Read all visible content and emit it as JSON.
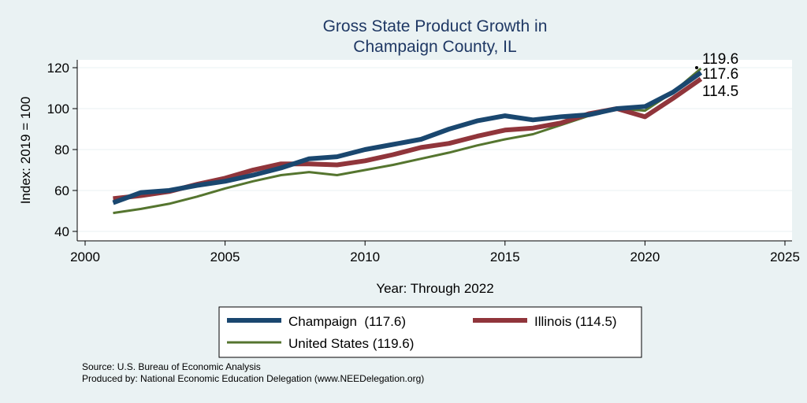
{
  "chart_data": {
    "type": "line",
    "title": [
      "Gross State Product Growth in",
      "Champaign County, IL"
    ],
    "xlabel": "Year: Through 2022",
    "ylabel": "Index: 2019 = 100",
    "xlim": [
      2000,
      2025
    ],
    "ylim": [
      40,
      120
    ],
    "xticks": [
      2000,
      2005,
      2010,
      2015,
      2020,
      2025
    ],
    "yticks": [
      40,
      60,
      80,
      100,
      120
    ],
    "grid": true,
    "legend_position": "bottom",
    "x": [
      2001,
      2002,
      2003,
      2004,
      2005,
      2006,
      2007,
      2008,
      2009,
      2010,
      2011,
      2012,
      2013,
      2014,
      2015,
      2016,
      2017,
      2018,
      2019,
      2020,
      2021,
      2022
    ],
    "series": [
      {
        "name": "Champaign  (117.6)",
        "color": "#1a476f",
        "width": 6,
        "values": [
          54,
          59,
          60,
          62.5,
          64.5,
          67.5,
          71,
          75.5,
          76.5,
          80,
          82.5,
          85,
          90,
          94,
          96.5,
          94.5,
          96,
          97,
          100,
          101,
          108,
          117.6
        ]
      },
      {
        "name": "Illinois (114.5)",
        "color": "#90353b",
        "width": 6,
        "values": [
          56,
          57.5,
          59.5,
          63,
          66,
          70,
          73,
          73,
          72.5,
          74.5,
          77.5,
          81,
          83,
          86.5,
          89.5,
          90.5,
          93,
          97.5,
          100,
          96,
          105,
          114.5
        ]
      },
      {
        "name": "United States (119.6)",
        "color": "#55752f",
        "width": 3,
        "values": [
          49,
          51,
          53.5,
          57,
          61,
          64.5,
          67.5,
          69,
          67.5,
          70,
          72.5,
          75.5,
          78.5,
          82,
          85,
          87.5,
          92,
          96.5,
          100,
          99,
          108,
          119.6
        ]
      }
    ],
    "end_labels": [
      "119.6",
      "117.6",
      "114.5"
    ]
  },
  "notes": {
    "source": "Source: U.S. Bureau of Economic Analysis",
    "produced": "Produced by: National Economic Education Delegation (www.NEEDelegation.org)"
  }
}
